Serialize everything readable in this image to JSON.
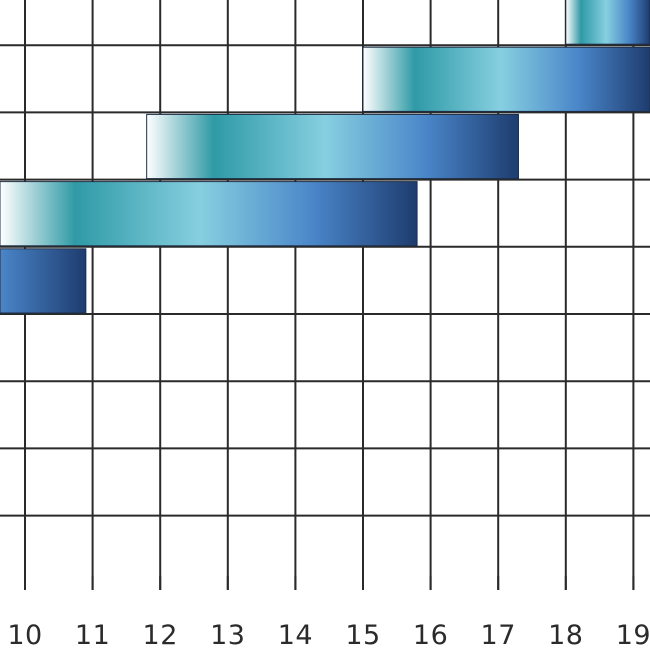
{
  "chart_data": {
    "type": "bar",
    "orientation": "horizontal",
    "style": "gantt",
    "title": "",
    "xlabel": "",
    "ylabel": "",
    "x_ticks": [
      "10",
      "11",
      "12",
      "13",
      "14",
      "15",
      "16",
      "17",
      "18",
      "19"
    ],
    "x_tick_values": [
      10,
      11,
      12,
      13,
      14,
      15,
      16,
      17,
      18,
      19
    ],
    "grid": true,
    "bars": [
      {
        "row": 0,
        "start": 18.0,
        "end": 19.5
      },
      {
        "row": 1,
        "start": 15.0,
        "end": 19.3
      },
      {
        "row": 2,
        "start": 11.8,
        "end": 17.3
      },
      {
        "row": 3,
        "start": 9.6,
        "end": 15.8
      },
      {
        "row": 4,
        "start": 9.6,
        "end": 10.9
      }
    ],
    "colors": {
      "gradient_start": "#ffffff",
      "gradient_teal": "#2f9aa6",
      "gradient_light": "#86cfe0",
      "gradient_blue": "#4a86c9",
      "gradient_end": "#1e3c6f",
      "grid": "#2a2a2a",
      "text": "#2b2b2b"
    }
  }
}
